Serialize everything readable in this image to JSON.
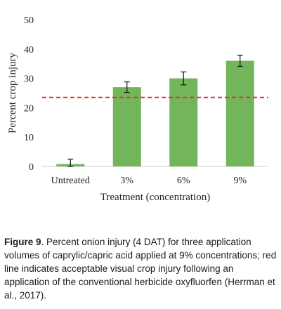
{
  "chart_data": {
    "type": "bar",
    "categories": [
      "Untreated",
      "3%",
      "6%",
      "9%"
    ],
    "values": [
      0.8,
      27,
      30,
      36
    ],
    "error": [
      1.7,
      1.8,
      2.2,
      1.9
    ],
    "xlabel": "Treatment (concentration)",
    "ylabel": "Percent crop injury",
    "ylim": [
      0,
      50
    ],
    "yticks": [
      0,
      10,
      20,
      30,
      40,
      50
    ],
    "reference_line": {
      "value": 23.5,
      "style": "dashed",
      "color": "#d9352b"
    },
    "grid": false,
    "bar_color": "#72b55a"
  },
  "caption": {
    "label": "Figure 9",
    "text": ". Percent onion injury (4 DAT) for three application volumes of caprylic/capric acid applied at 9% concentrations; red line indicates acceptable visual crop injury following an application of the conventional herbicide oxyfluorfen (Herrman et al., 2017)."
  }
}
